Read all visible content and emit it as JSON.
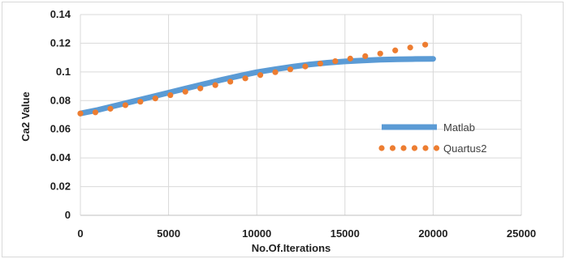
{
  "chart_data": {
    "type": "line",
    "title": "",
    "xlabel": "No.Of.Iterations",
    "ylabel": "Ca2 Value",
    "xlim": [
      0,
      25000
    ],
    "ylim": [
      0,
      0.14
    ],
    "x_ticks": [
      "0",
      "5000",
      "10000",
      "15000",
      "20000",
      "25000"
    ],
    "y_ticks": [
      "0",
      "0.02",
      "0.04",
      "0.06",
      "0.08",
      "0.1",
      "0.12",
      "0.14"
    ],
    "grid": true,
    "legend_position": "right",
    "series": [
      {
        "name": "Matlab",
        "style": "solid-thick",
        "color": "#5b9bd5",
        "x": [
          0,
          1000,
          2000,
          3000,
          4000,
          5000,
          6000,
          7000,
          8000,
          9000,
          10000,
          11000,
          12000,
          13000,
          14000,
          15000,
          16000,
          17000,
          18000,
          19000,
          20000
        ],
        "y": [
          0.071,
          0.0735,
          0.0765,
          0.0795,
          0.0825,
          0.0855,
          0.0885,
          0.0915,
          0.0945,
          0.0972,
          0.0998,
          0.1018,
          0.1036,
          0.1052,
          0.1064,
          0.1073,
          0.108,
          0.1085,
          0.1088,
          0.109,
          0.1091
        ]
      },
      {
        "name": "Quartus2",
        "style": "dotted",
        "color": "#ed7d31",
        "x": [
          0,
          850,
          1700,
          2550,
          3400,
          4250,
          5100,
          5950,
          6800,
          7650,
          8500,
          9350,
          10200,
          11050,
          11900,
          12750,
          13600,
          14450,
          15300,
          16150,
          17000,
          17850,
          18700,
          19550
        ],
        "y": [
          0.071,
          0.0718,
          0.0743,
          0.0768,
          0.0792,
          0.0815,
          0.0838,
          0.0862,
          0.0885,
          0.0908,
          0.0932,
          0.0955,
          0.0978,
          0.0998,
          0.1018,
          0.1038,
          0.1058,
          0.1075,
          0.1093,
          0.111,
          0.1128,
          0.115,
          0.117,
          0.119
        ]
      }
    ]
  }
}
